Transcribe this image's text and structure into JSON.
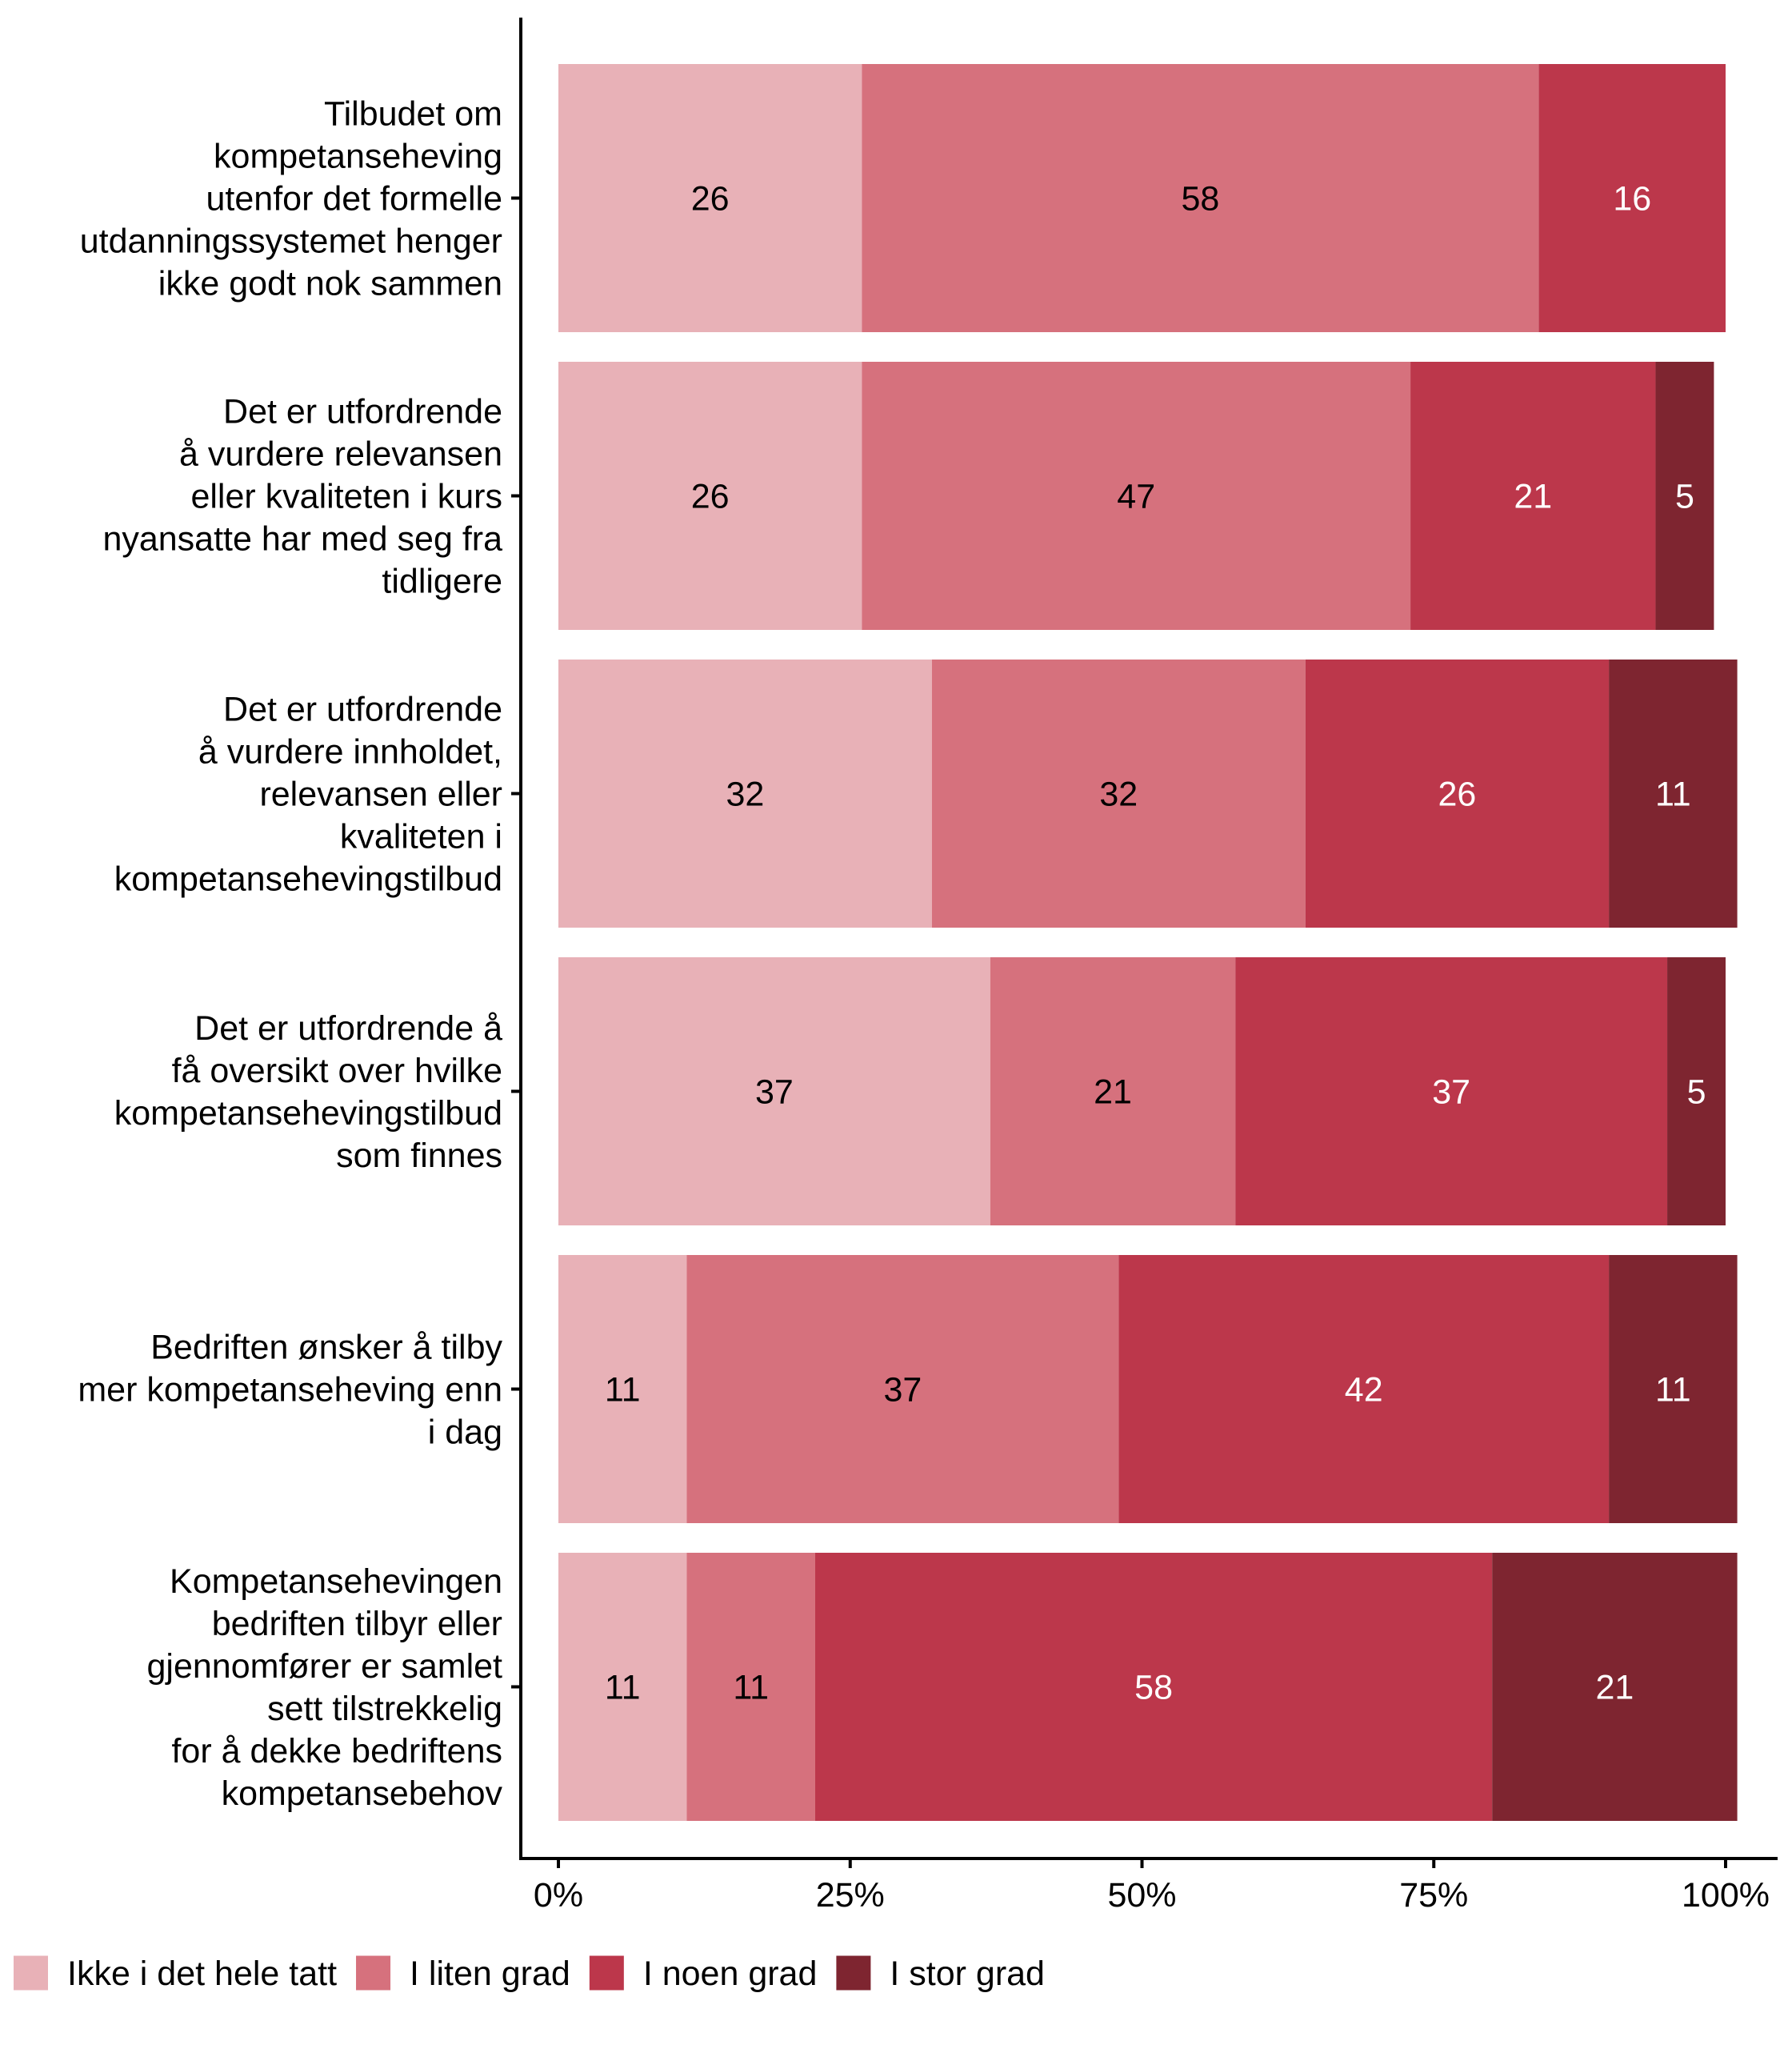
{
  "chart_data": {
    "type": "bar",
    "orientation": "horizontal",
    "stacked": true,
    "title": "",
    "xlabel": "",
    "ylabel": "",
    "xlim": [
      0,
      100
    ],
    "x_unit": "%",
    "x_ticks": [
      0,
      25,
      50,
      75,
      100
    ],
    "x_tick_labels": [
      "0%",
      "25%",
      "50%",
      "75%",
      "100%"
    ],
    "grid": false,
    "legend_position": "bottom",
    "categories": [
      [
        "Tilbudet om",
        "kompetanseheving",
        "utenfor det formelle",
        "utdanningssystemet henger",
        "ikke godt nok sammen"
      ],
      [
        "Det er utfordrende",
        "å vurdere relevansen",
        "eller kvaliteten i kurs",
        "nyansatte har med seg fra",
        "tidligere"
      ],
      [
        "Det er utfordrende",
        "å vurdere innholdet,",
        "relevansen eller",
        "kvaliteten i",
        "kompetansehevingstilbud"
      ],
      [
        "Det er utfordrende å",
        "få oversikt over hvilke",
        "kompetansehevingstilbud",
        "som finnes"
      ],
      [
        "Bedriften ønsker å tilby",
        "mer kompetanseheving enn",
        "i dag"
      ],
      [
        "Kompetansehevingen",
        "bedriften tilbyr eller",
        "gjennomfører er samlet",
        "sett tilstrekkelig",
        "for å dekke bedriftens",
        "kompetansebehov"
      ]
    ],
    "series": [
      {
        "name": "Ikke i det hele tatt",
        "color": "#E8B1B7",
        "label_color": "#000000",
        "values": [
          26,
          26,
          32,
          37,
          11,
          11
        ]
      },
      {
        "name": "I liten grad",
        "color": "#D6717D",
        "label_color": "#000000",
        "values": [
          58,
          47,
          32,
          21,
          37,
          11
        ]
      },
      {
        "name": "I noen grad",
        "color": "#BC374B",
        "label_color": "#FFFFFF",
        "values": [
          16,
          21,
          26,
          37,
          42,
          58
        ]
      },
      {
        "name": "I stor grad",
        "color": "#7E2530",
        "label_color": "#FFFFFF",
        "values": [
          0,
          5,
          11,
          5,
          11,
          21
        ]
      }
    ]
  }
}
